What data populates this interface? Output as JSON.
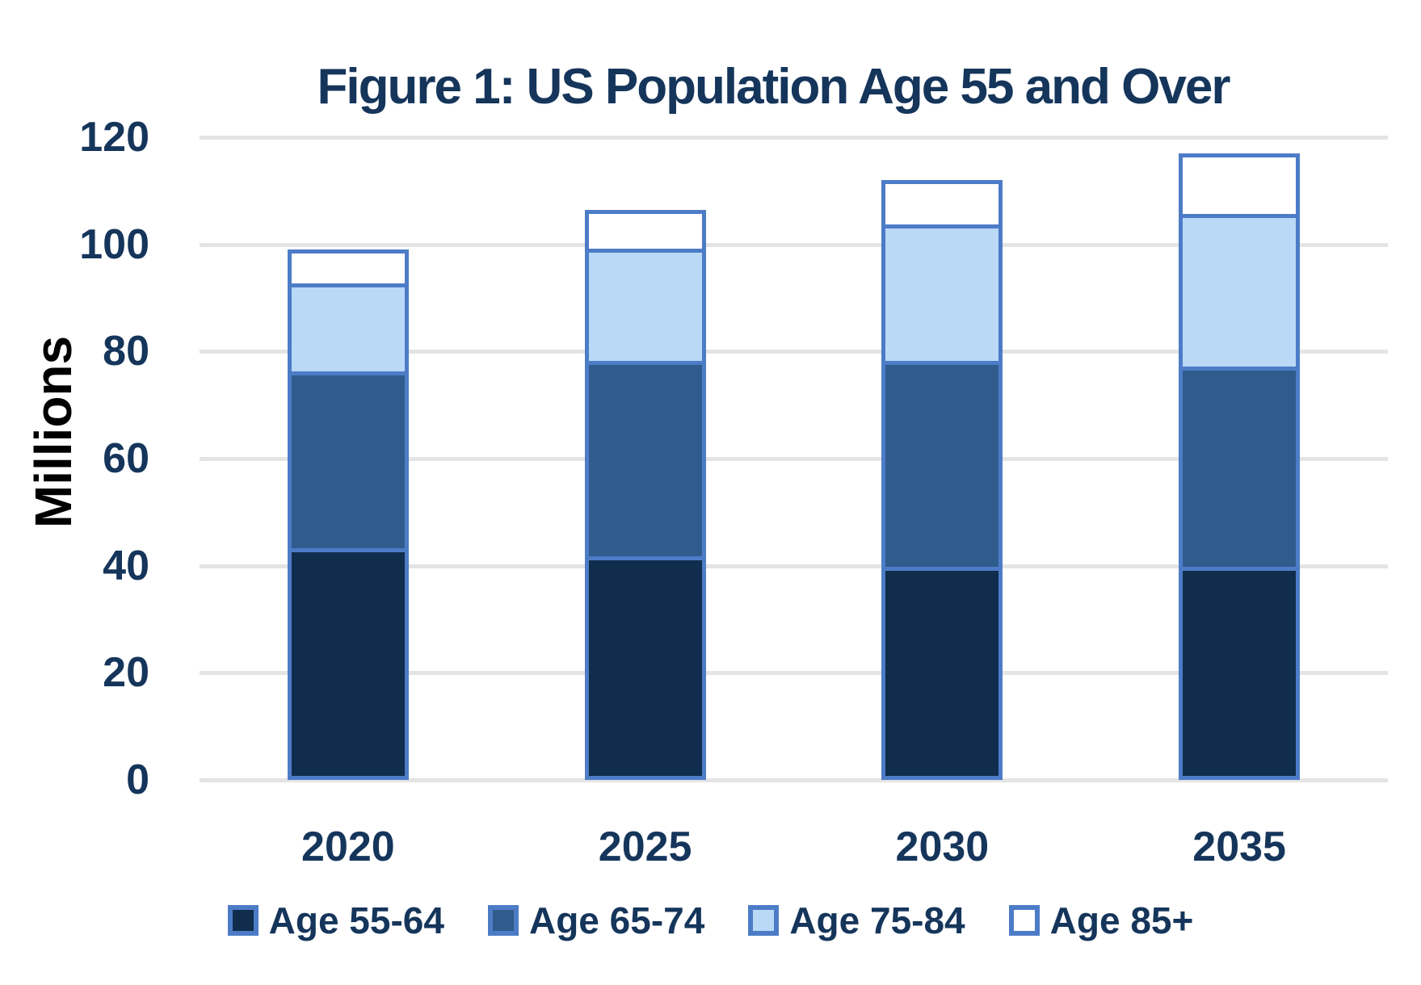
{
  "chart_data": {
    "type": "bar",
    "stacked": true,
    "title": "Figure 1: US Population Age 55 and Over",
    "ylabel": "Millions",
    "xlabel": "",
    "categories": [
      "2020",
      "2025",
      "2030",
      "2035"
    ],
    "series": [
      {
        "name": "Age 55-64",
        "color": "#102D4D",
        "values": [
          42.5,
          41,
          39,
          39
        ]
      },
      {
        "name": "Age 65-74",
        "color": "#2F5C8C",
        "values": [
          33,
          36.5,
          38.5,
          37.5
        ]
      },
      {
        "name": "Age 75-84",
        "color": "#BAD9F7",
        "values": [
          16.5,
          21,
          25.5,
          28.5
        ]
      },
      {
        "name": "Age 85+",
        "color": "#FFFFFF",
        "values": [
          7,
          8,
          9,
          12
        ]
      }
    ],
    "ylim": [
      0,
      120
    ],
    "yticks": [
      0,
      20,
      40,
      60,
      80,
      100,
      120
    ],
    "grid": true,
    "legend_position": "bottom",
    "bar_border_color": "#4D7CC7",
    "gridline_color": "#E4E4E4",
    "text_color": "#15355B",
    "ylabel_color": "#000000"
  }
}
